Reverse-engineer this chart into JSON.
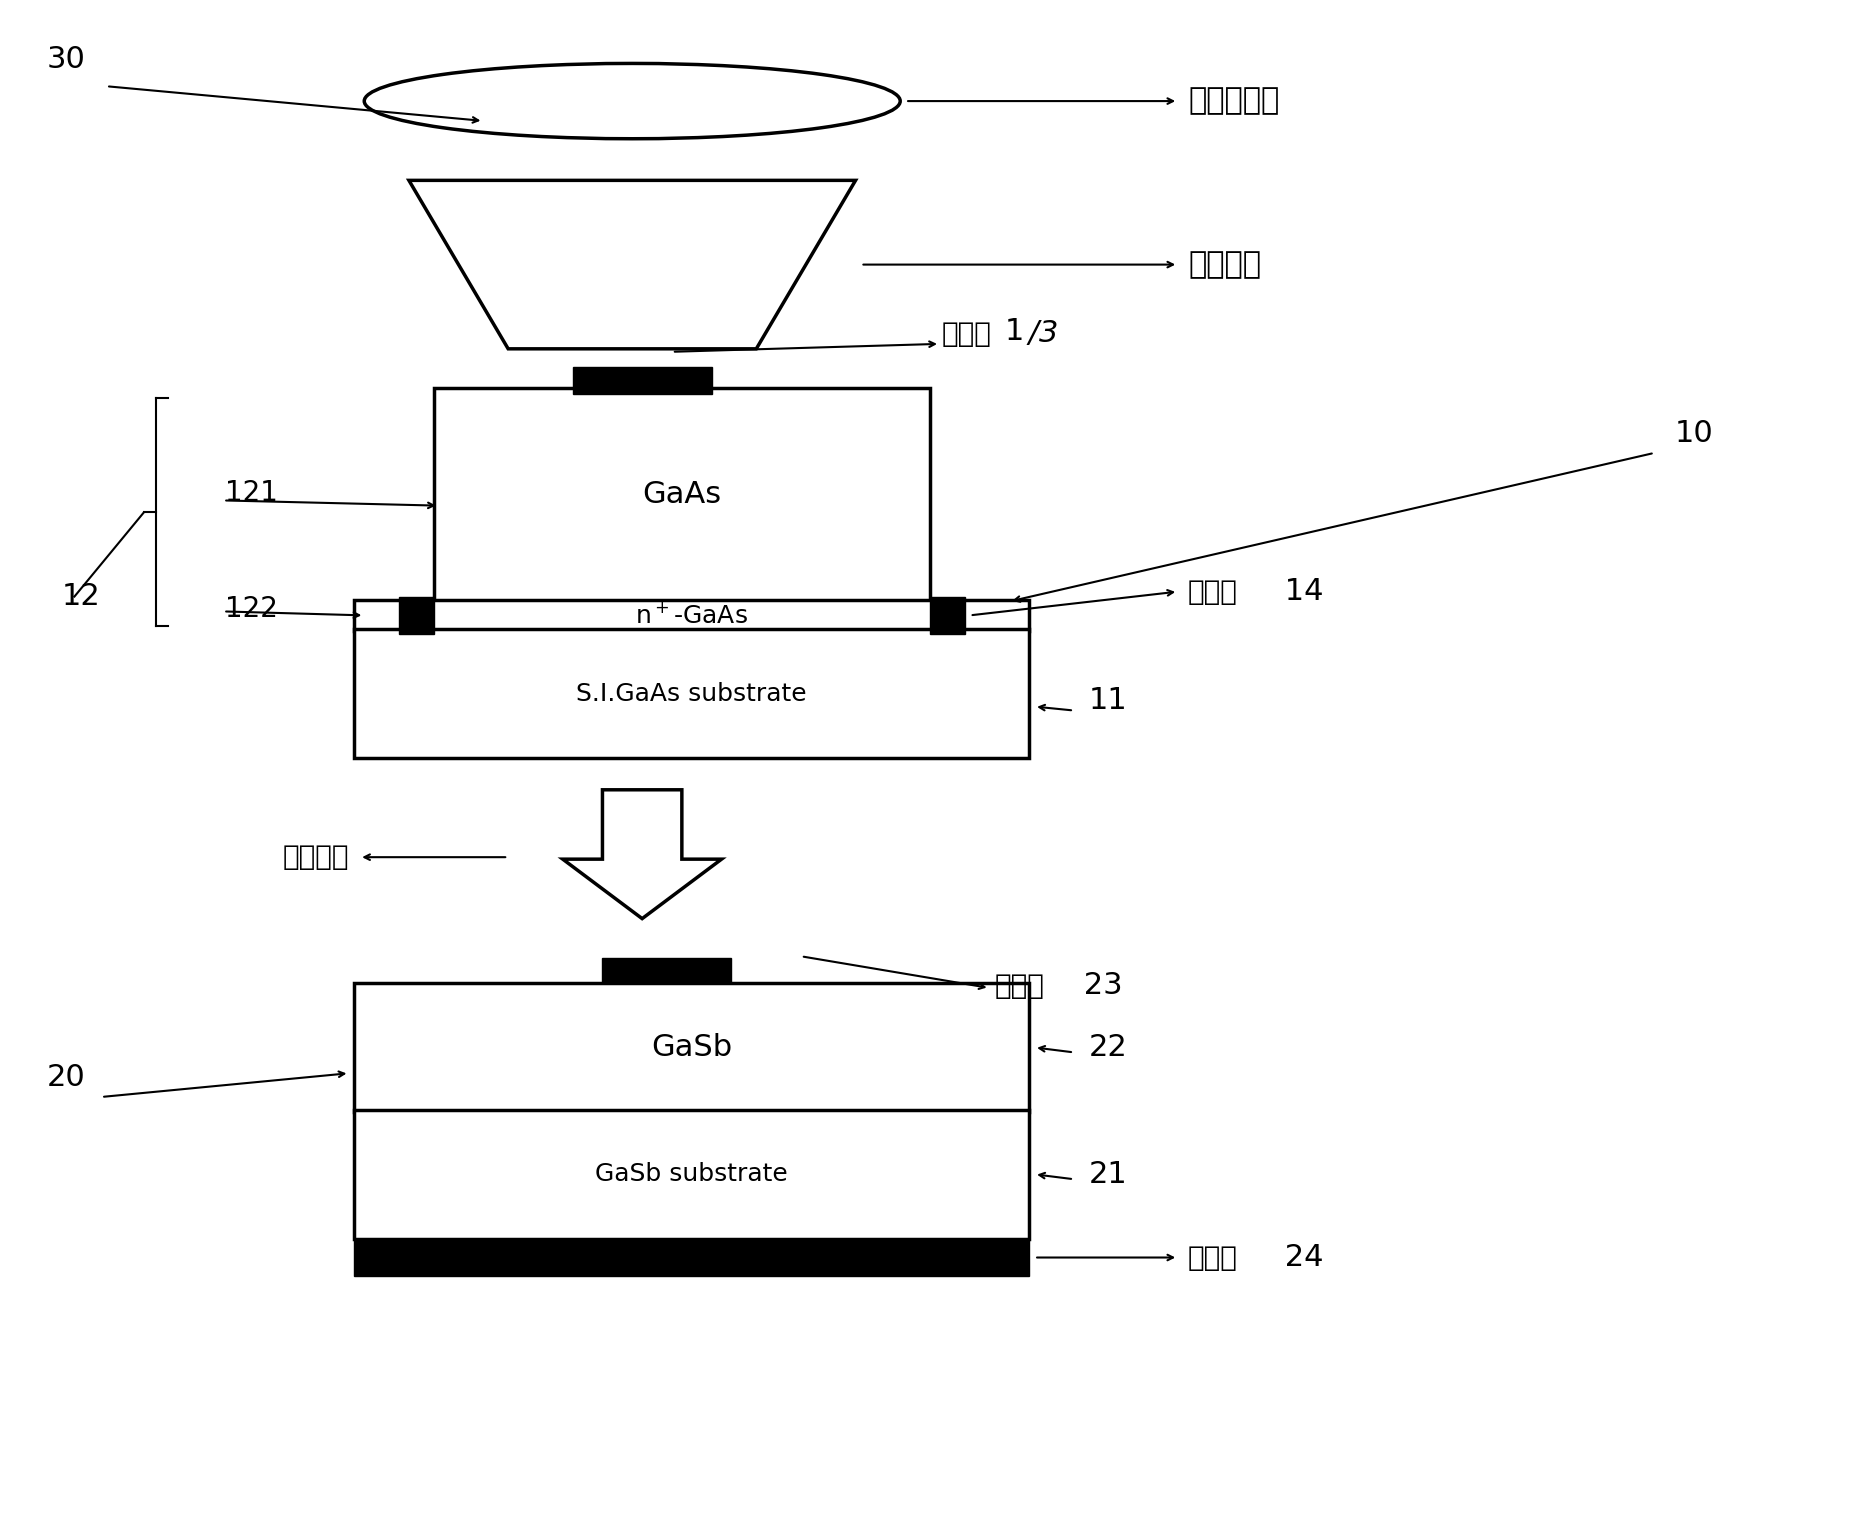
{
  "bg_color": "#ffffff",
  "fig_width": 18.56,
  "fig_height": 15.34,
  "fresnel_label": "菲涅尔透镜",
  "concentrator_label": "聚光光束",
  "beam_label": "聚光光束",
  "pos_label": "正电极",
  "back_label": "背电极"
}
